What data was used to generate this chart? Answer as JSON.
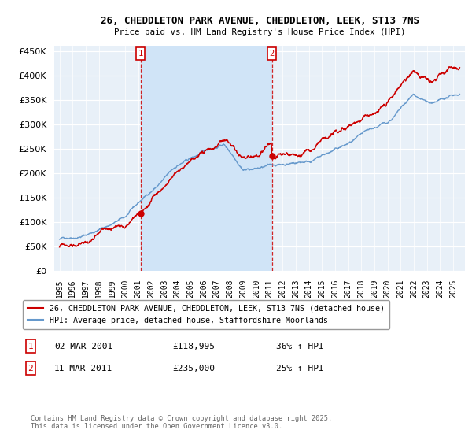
{
  "title_line1": "26, CHEDDLETON PARK AVENUE, CHEDDLETON, LEEK, ST13 7NS",
  "title_line2": "Price paid vs. HM Land Registry's House Price Index (HPI)",
  "legend_label1": "26, CHEDDLETON PARK AVENUE, CHEDDLETON, LEEK, ST13 7NS (detached house)",
  "legend_label2": "HPI: Average price, detached house, Staffordshire Moorlands",
  "annotation1_date": "02-MAR-2001",
  "annotation1_price": "£118,995",
  "annotation1_pct": "36% ↑ HPI",
  "annotation2_date": "11-MAR-2011",
  "annotation2_price": "£235,000",
  "annotation2_pct": "25% ↑ HPI",
  "footer": "Contains HM Land Registry data © Crown copyright and database right 2025.\nThis data is licensed under the Open Government Licence v3.0.",
  "property_color": "#cc0000",
  "hpi_color": "#6699cc",
  "shade_color": "#d0e4f7",
  "background_color": "#e8f0f8",
  "purchase1_year": 2001.17,
  "purchase2_year": 2011.19,
  "purchase1_price": 118995,
  "purchase2_price": 235000,
  "ylim_max": 460000,
  "ylim_min": 0,
  "xmin": 1994.6,
  "xmax": 2025.9
}
